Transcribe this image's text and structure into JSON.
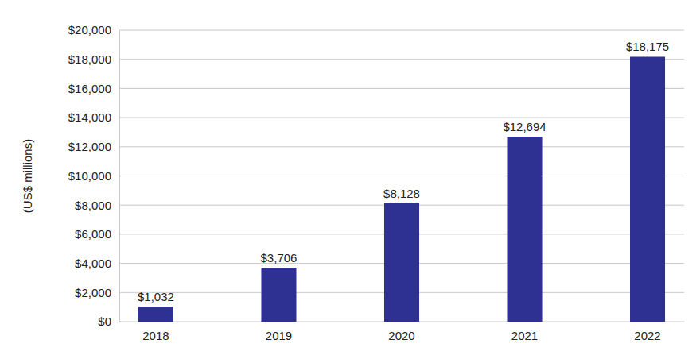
{
  "chart_data": {
    "type": "bar",
    "y_label": "(US$ millions)",
    "categories": [
      "2018",
      "2019",
      "2020",
      "2021",
      "2022"
    ],
    "values": [
      1032,
      3706,
      8128,
      12694,
      18175
    ],
    "value_labels": [
      "$1,032",
      "$3,706",
      "$8,128",
      "$12,694",
      "$18,175"
    ],
    "color": "#2E3192",
    "ylim": [
      0,
      20000
    ],
    "yticks": [
      {
        "value": 0,
        "label": "$0"
      },
      {
        "value": 2000,
        "label": "$2,000"
      },
      {
        "value": 4000,
        "label": "$4,000"
      },
      {
        "value": 6000,
        "label": "$6,000"
      },
      {
        "value": 8000,
        "label": "$8,000"
      },
      {
        "value": 10000,
        "label": "$10,000"
      },
      {
        "value": 12000,
        "label": "$12,000"
      },
      {
        "value": 14000,
        "label": "$14,000"
      },
      {
        "value": 16000,
        "label": "$16,000"
      },
      {
        "value": 18000,
        "label": "$18,000"
      },
      {
        "value": 20000,
        "label": "$20,000"
      }
    ],
    "grid": true,
    "data_labels": true
  }
}
